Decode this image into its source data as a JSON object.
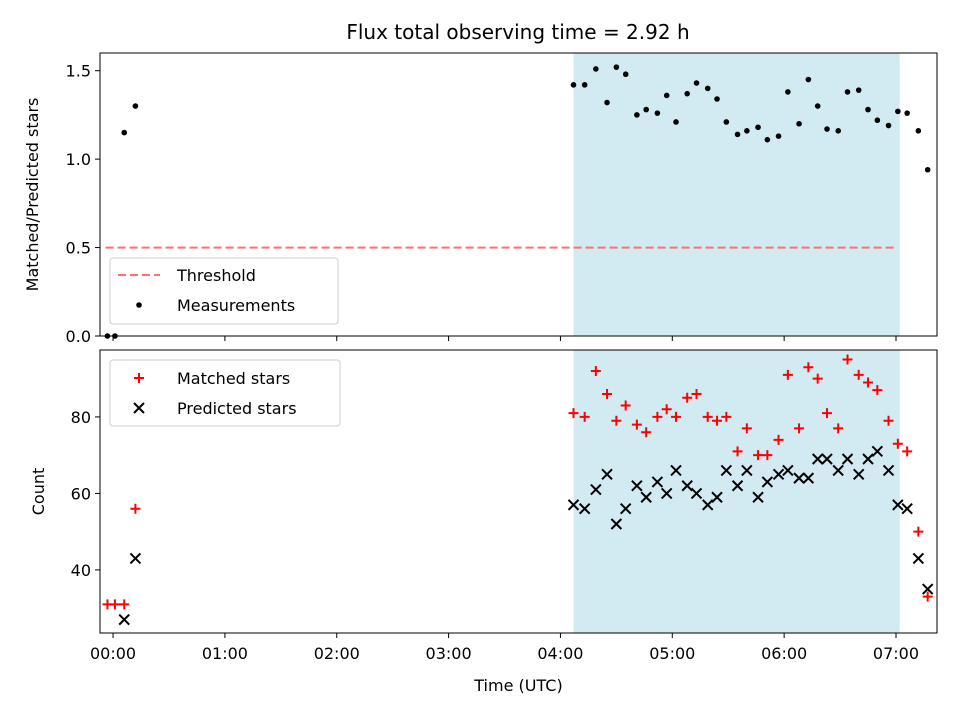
{
  "figure": {
    "title": "Flux total observing time = 2.92 h"
  },
  "colors": {
    "shade": "#add8e6",
    "threshold": "#ff6f6f",
    "measurements": "#000000",
    "matched": "#ff0000",
    "predicted": "#000000"
  },
  "chart_data": [
    {
      "type": "scatter",
      "ylabel": "Matched/Predicted stars",
      "xlabel": "",
      "xlim": [
        "23:53",
        "07:22"
      ],
      "ylim": [
        0,
        1.6
      ],
      "yticks": [
        "0.0",
        "0.5",
        "1.0",
        "1.5"
      ],
      "shaded_span": [
        "04:07",
        "07:02"
      ],
      "legend_location": "lower left",
      "threshold": {
        "name": "Threshold",
        "style": "dashed",
        "y": 0.5,
        "x_range": [
          "23:56",
          "06:59"
        ]
      },
      "series": [
        {
          "name": "Measurements",
          "marker": "dot",
          "points": [
            [
              "23:57",
              0.0
            ],
            [
              "00:01",
              0.0
            ],
            [
              "00:06",
              1.15
            ],
            [
              "00:12",
              1.3
            ],
            [
              "04:07",
              1.42
            ],
            [
              "04:13",
              1.42
            ],
            [
              "04:19",
              1.51
            ],
            [
              "04:25",
              1.32
            ],
            [
              "04:30",
              1.52
            ],
            [
              "04:35",
              1.48
            ],
            [
              "04:41",
              1.25
            ],
            [
              "04:46",
              1.28
            ],
            [
              "04:52",
              1.26
            ],
            [
              "04:57",
              1.36
            ],
            [
              "05:02",
              1.21
            ],
            [
              "05:08",
              1.37
            ],
            [
              "05:13",
              1.43
            ],
            [
              "05:19",
              1.4
            ],
            [
              "05:24",
              1.34
            ],
            [
              "05:29",
              1.21
            ],
            [
              "05:35",
              1.14
            ],
            [
              "05:40",
              1.16
            ],
            [
              "05:46",
              1.18
            ],
            [
              "05:51",
              1.11
            ],
            [
              "05:57",
              1.13
            ],
            [
              "06:02",
              1.38
            ],
            [
              "06:08",
              1.2
            ],
            [
              "06:13",
              1.45
            ],
            [
              "06:18",
              1.3
            ],
            [
              "06:23",
              1.17
            ],
            [
              "06:29",
              1.16
            ],
            [
              "06:34",
              1.38
            ],
            [
              "06:40",
              1.39
            ],
            [
              "06:45",
              1.28
            ],
            [
              "06:50",
              1.22
            ],
            [
              "06:56",
              1.19
            ],
            [
              "07:01",
              1.27
            ],
            [
              "07:06",
              1.26
            ],
            [
              "07:12",
              1.16
            ],
            [
              "07:17",
              0.94
            ]
          ]
        }
      ]
    },
    {
      "type": "scatter",
      "ylabel": "Count",
      "xlabel": "Time (UTC)",
      "xlim": [
        "23:53",
        "07:22"
      ],
      "ylim": [
        23.5,
        97.5
      ],
      "yticks": [
        "40",
        "60",
        "80"
      ],
      "xticks": [
        "00:00",
        "01:00",
        "02:00",
        "03:00",
        "04:00",
        "05:00",
        "06:00",
        "07:00"
      ],
      "shaded_span": [
        "04:07",
        "07:02"
      ],
      "legend_location": "upper left",
      "series": [
        {
          "name": "Matched stars",
          "marker": "plus",
          "points": [
            [
              "23:57",
              31
            ],
            [
              "00:01",
              31
            ],
            [
              "00:06",
              31
            ],
            [
              "00:12",
              56
            ],
            [
              "04:07",
              81
            ],
            [
              "04:13",
              80
            ],
            [
              "04:19",
              92
            ],
            [
              "04:25",
              86
            ],
            [
              "04:30",
              79
            ],
            [
              "04:35",
              83
            ],
            [
              "04:41",
              78
            ],
            [
              "04:46",
              76
            ],
            [
              "04:52",
              80
            ],
            [
              "04:57",
              82
            ],
            [
              "05:02",
              80
            ],
            [
              "05:08",
              85
            ],
            [
              "05:13",
              86
            ],
            [
              "05:19",
              80
            ],
            [
              "05:24",
              79
            ],
            [
              "05:29",
              80
            ],
            [
              "05:35",
              71
            ],
            [
              "05:40",
              77
            ],
            [
              "05:46",
              70
            ],
            [
              "05:51",
              70
            ],
            [
              "05:57",
              74
            ],
            [
              "06:02",
              91
            ],
            [
              "06:08",
              77
            ],
            [
              "06:13",
              93
            ],
            [
              "06:18",
              90
            ],
            [
              "06:23",
              81
            ],
            [
              "06:29",
              77
            ],
            [
              "06:34",
              95
            ],
            [
              "06:40",
              91
            ],
            [
              "06:45",
              89
            ],
            [
              "06:50",
              87
            ],
            [
              "06:56",
              79
            ],
            [
              "07:01",
              73
            ],
            [
              "07:06",
              71
            ],
            [
              "07:12",
              50
            ],
            [
              "07:17",
              33
            ]
          ]
        },
        {
          "name": "Predicted stars",
          "marker": "x",
          "points": [
            [
              "00:06",
              27
            ],
            [
              "00:12",
              43
            ],
            [
              "04:07",
              57
            ],
            [
              "04:13",
              56
            ],
            [
              "04:19",
              61
            ],
            [
              "04:25",
              65
            ],
            [
              "04:30",
              52
            ],
            [
              "04:35",
              56
            ],
            [
              "04:41",
              62
            ],
            [
              "04:46",
              59
            ],
            [
              "04:52",
              63
            ],
            [
              "04:57",
              60
            ],
            [
              "05:02",
              66
            ],
            [
              "05:08",
              62
            ],
            [
              "05:13",
              60
            ],
            [
              "05:19",
              57
            ],
            [
              "05:24",
              59
            ],
            [
              "05:29",
              66
            ],
            [
              "05:35",
              62
            ],
            [
              "05:40",
              66
            ],
            [
              "05:46",
              59
            ],
            [
              "05:51",
              63
            ],
            [
              "05:57",
              65
            ],
            [
              "06:02",
              66
            ],
            [
              "06:08",
              64
            ],
            [
              "06:13",
              64
            ],
            [
              "06:18",
              69
            ],
            [
              "06:23",
              69
            ],
            [
              "06:29",
              66
            ],
            [
              "06:34",
              69
            ],
            [
              "06:40",
              65
            ],
            [
              "06:45",
              69
            ],
            [
              "06:50",
              71
            ],
            [
              "06:56",
              66
            ],
            [
              "07:01",
              57
            ],
            [
              "07:06",
              56
            ],
            [
              "07:12",
              43
            ],
            [
              "07:17",
              35
            ]
          ]
        }
      ]
    }
  ]
}
